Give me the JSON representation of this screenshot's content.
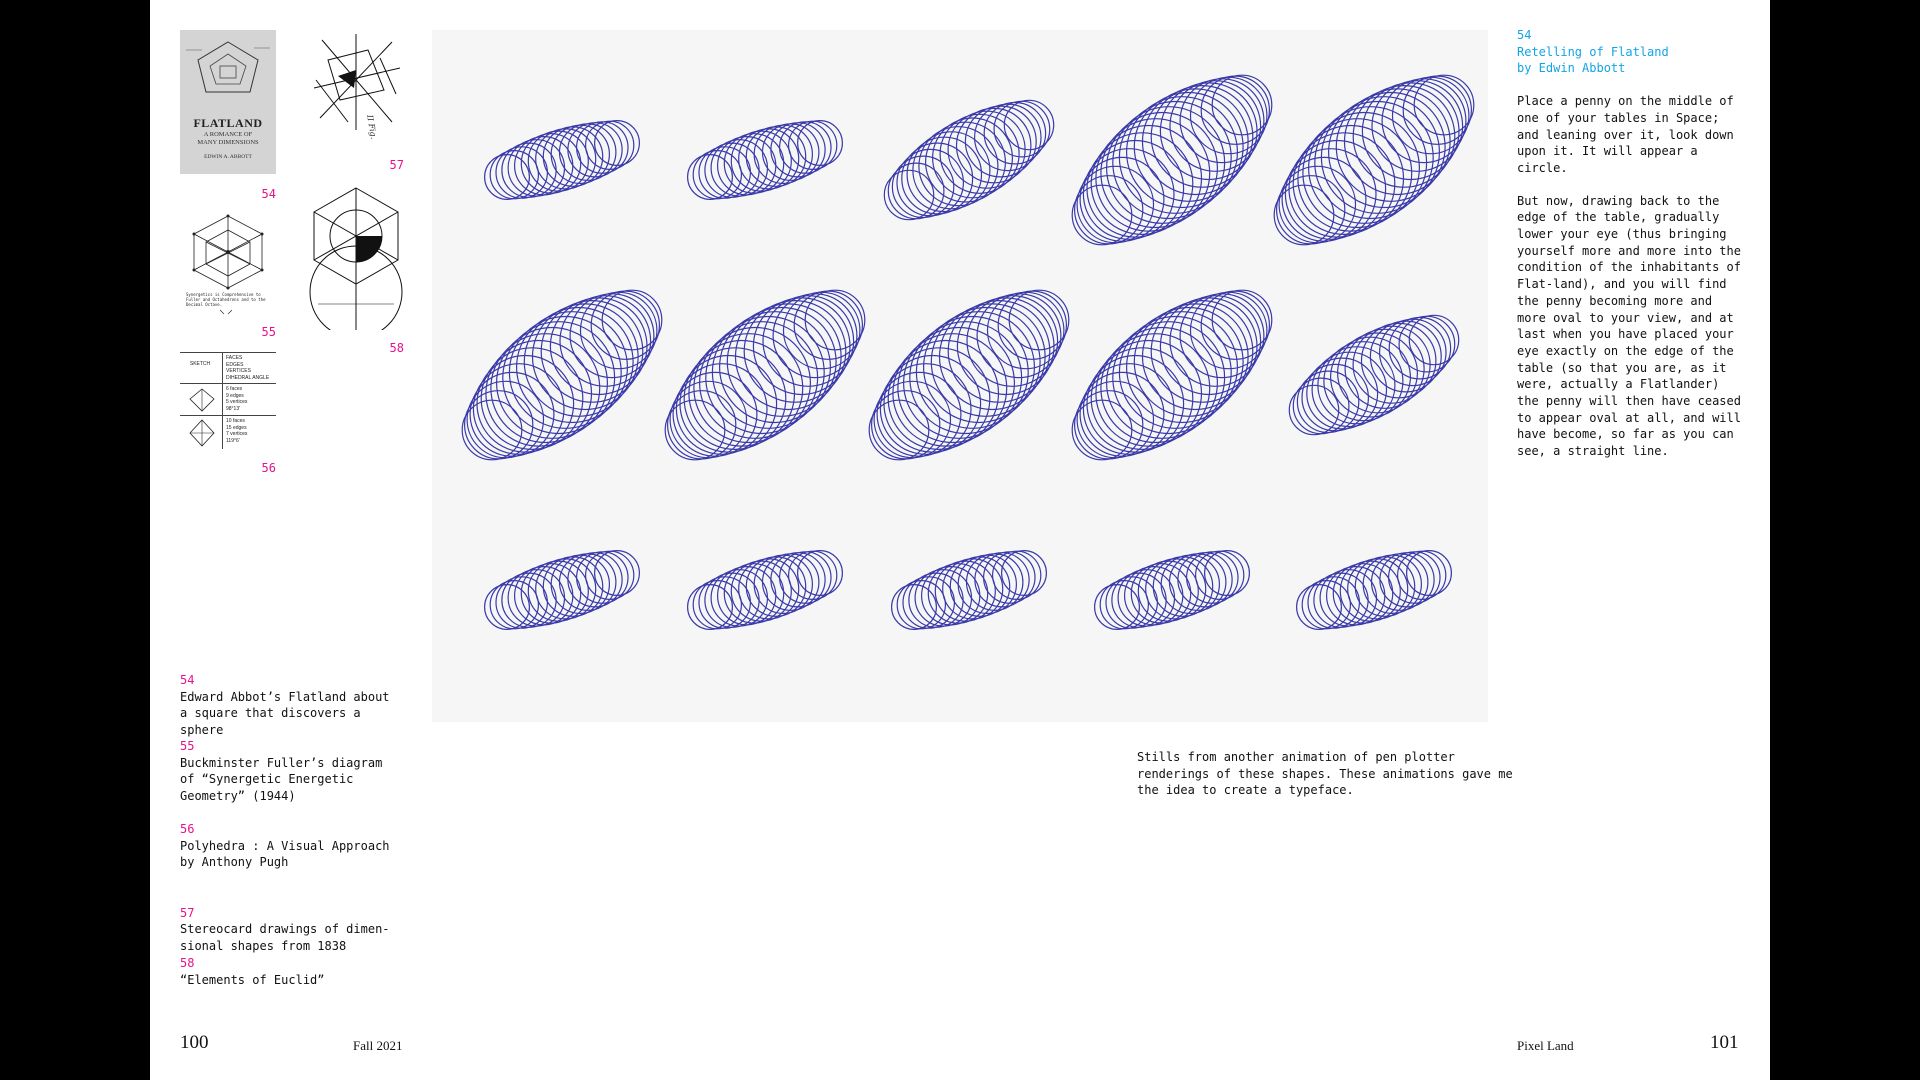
{
  "thumbnails": [
    {
      "num": "54",
      "title": "FLATLAND",
      "subtitle": "A ROMANCE OF\nMANY DIMENSIONS",
      "author": "EDWIN A. ABBOTT"
    },
    {
      "num": "55",
      "caption_text": "Synergetics is Comprehensive to\nFuller and Octahedrons and to the\nDecimal Octave."
    },
    {
      "num": "56",
      "table_header": [
        "SKETCH",
        "FACES\nEDGES\nVERTICES\nDIHEDRAL ANGLE"
      ],
      "rows": [
        [
          "6 faces\n9 edges\n5 vertices\n98°13'"
        ],
        [
          "10 faces\n15 edges\n7 vertices\n119°6'"
        ]
      ]
    },
    {
      "num": "57",
      "handwriting": "II Fig."
    },
    {
      "num": "58"
    }
  ],
  "captions": [
    {
      "num": "54",
      "text": "Edward Abbot’s Flatland about a square that discovers a sphere"
    },
    {
      "num": "55",
      "text": "Buckminster Fuller’s diagram of “Synergetic Energetic Geometry” (1944)"
    },
    {
      "num": "56",
      "text": "Polyhedra : A Visual Approach by Anthony Pugh"
    },
    {
      "num": "57",
      "text": "Stereocard drawings of dimen-\nsional shapes from 1838"
    },
    {
      "num": "58",
      "text": "“Elements of Euclid”"
    }
  ],
  "main_caption": "Stills from another animation of pen plotter renderings of these shapes. These animations gave me the idea to create a typeface.",
  "sidebar": {
    "ref_num": "54",
    "ref_title": "Retelling of Flatland by Edwin Abbott",
    "paragraphs": [
      "Place a penny on the middle of one of your tables in Space; and leaning over it, look down upon it. It will appear a circle.",
      "But now, drawing back to the edge of the table, gradually lower your eye (thus bringing yourself more and more into the condition of the inhabitants of Flat-land), and you will find the penny becoming more and more oval to your view, and at last when you have placed your eye exactly on the edge of the table (so that you are, as it were, actually a Flatlander) the penny will then have ceased to appear oval at all, and will have become, so far as you can see, a straight line."
    ]
  },
  "footer": {
    "left_page": "100",
    "left_title": "Fall 2021",
    "right_title": "Pixel Land",
    "right_page": "101"
  },
  "colors": {
    "figure_number": "#e6138c",
    "sidebar_reference": "#12a5e6",
    "plotter_ink": "#3a3aa8",
    "page": "#ffffff",
    "background": "#000000"
  }
}
